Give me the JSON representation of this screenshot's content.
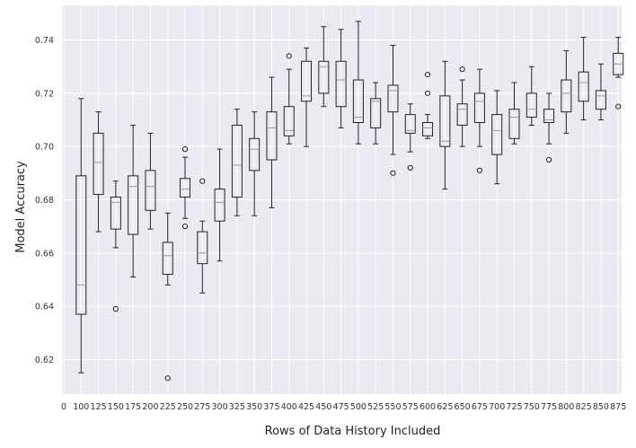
{
  "chart_data": {
    "type": "boxplot",
    "xlabel": "Rows of Data History Included",
    "ylabel": "Model Accuracy",
    "x_ticks": [
      "0",
      "100",
      "125",
      "150",
      "175",
      "200",
      "225",
      "250",
      "275",
      "300",
      "325",
      "350",
      "375",
      "400",
      "425",
      "450",
      "475",
      "500",
      "525",
      "550",
      "575",
      "600",
      "625",
      "650",
      "675",
      "700",
      "725",
      "750",
      "775",
      "800",
      "825",
      "850",
      "875"
    ],
    "y_ticks": [
      "0.62",
      "0.64",
      "0.66",
      "0.68",
      "0.70",
      "0.72",
      "0.74"
    ],
    "ylim": [
      0.607,
      0.753
    ],
    "grid": true,
    "colors": {
      "background": "#eaeaf2",
      "grid": "#ffffff",
      "box": "#222222"
    },
    "boxes": [
      {
        "x": "100",
        "whislo": 0.615,
        "q1": 0.637,
        "med": 0.648,
        "q3": 0.689,
        "whishi": 0.718,
        "fliers": []
      },
      {
        "x": "125",
        "whislo": 0.668,
        "q1": 0.682,
        "med": 0.694,
        "q3": 0.705,
        "whishi": 0.713,
        "fliers": []
      },
      {
        "x": "150",
        "whislo": 0.662,
        "q1": 0.669,
        "med": 0.679,
        "q3": 0.681,
        "whishi": 0.687,
        "fliers": [
          0.639
        ]
      },
      {
        "x": "175",
        "whislo": 0.651,
        "q1": 0.667,
        "med": 0.685,
        "q3": 0.689,
        "whishi": 0.708,
        "fliers": []
      },
      {
        "x": "200",
        "whislo": 0.669,
        "q1": 0.676,
        "med": 0.685,
        "q3": 0.691,
        "whishi": 0.705,
        "fliers": []
      },
      {
        "x": "225",
        "whislo": 0.648,
        "q1": 0.652,
        "med": 0.659,
        "q3": 0.664,
        "whishi": 0.675,
        "fliers": [
          0.613
        ]
      },
      {
        "x": "250",
        "whislo": 0.673,
        "q1": 0.681,
        "med": 0.684,
        "q3": 0.688,
        "whishi": 0.696,
        "fliers": [
          0.699,
          0.67
        ]
      },
      {
        "x": "275",
        "whislo": 0.645,
        "q1": 0.656,
        "med": 0.66,
        "q3": 0.668,
        "whishi": 0.672,
        "fliers": [
          0.687
        ]
      },
      {
        "x": "300",
        "whislo": 0.657,
        "q1": 0.672,
        "med": 0.679,
        "q3": 0.684,
        "whishi": 0.699,
        "fliers": []
      },
      {
        "x": "325",
        "whislo": 0.674,
        "q1": 0.681,
        "med": 0.693,
        "q3": 0.708,
        "whishi": 0.714,
        "fliers": []
      },
      {
        "x": "350",
        "whislo": 0.674,
        "q1": 0.691,
        "med": 0.699,
        "q3": 0.703,
        "whishi": 0.713,
        "fliers": []
      },
      {
        "x": "375",
        "whislo": 0.677,
        "q1": 0.695,
        "med": 0.707,
        "q3": 0.713,
        "whishi": 0.726,
        "fliers": []
      },
      {
        "x": "400",
        "whislo": 0.701,
        "q1": 0.704,
        "med": 0.706,
        "q3": 0.715,
        "whishi": 0.729,
        "fliers": [
          0.734
        ]
      },
      {
        "x": "425",
        "whislo": 0.7,
        "q1": 0.717,
        "med": 0.719,
        "q3": 0.732,
        "whishi": 0.737,
        "fliers": []
      },
      {
        "x": "450",
        "whislo": 0.715,
        "q1": 0.72,
        "med": 0.73,
        "q3": 0.732,
        "whishi": 0.745,
        "fliers": []
      },
      {
        "x": "475",
        "whislo": 0.707,
        "q1": 0.715,
        "med": 0.725,
        "q3": 0.732,
        "whishi": 0.744,
        "fliers": []
      },
      {
        "x": "500",
        "whislo": 0.701,
        "q1": 0.709,
        "med": 0.711,
        "q3": 0.725,
        "whishi": 0.747,
        "fliers": []
      },
      {
        "x": "525",
        "whislo": 0.701,
        "q1": 0.707,
        "med": 0.717,
        "q3": 0.718,
        "whishi": 0.724,
        "fliers": []
      },
      {
        "x": "550",
        "whislo": 0.697,
        "q1": 0.713,
        "med": 0.721,
        "q3": 0.723,
        "whishi": 0.738,
        "fliers": [
          0.69
        ]
      },
      {
        "x": "575",
        "whislo": 0.698,
        "q1": 0.705,
        "med": 0.706,
        "q3": 0.712,
        "whishi": 0.716,
        "fliers": [
          0.692
        ]
      },
      {
        "x": "600",
        "whislo": 0.703,
        "q1": 0.704,
        "med": 0.707,
        "q3": 0.709,
        "whishi": 0.712,
        "fliers": [
          0.727,
          0.72
        ]
      },
      {
        "x": "625",
        "whislo": 0.684,
        "q1": 0.7,
        "med": 0.702,
        "q3": 0.719,
        "whishi": 0.732,
        "fliers": []
      },
      {
        "x": "650",
        "whislo": 0.7,
        "q1": 0.708,
        "med": 0.714,
        "q3": 0.716,
        "whishi": 0.725,
        "fliers": [
          0.729
        ]
      },
      {
        "x": "675",
        "whislo": 0.7,
        "q1": 0.709,
        "med": 0.717,
        "q3": 0.72,
        "whishi": 0.729,
        "fliers": [
          0.691
        ]
      },
      {
        "x": "700",
        "whislo": 0.686,
        "q1": 0.697,
        "med": 0.706,
        "q3": 0.712,
        "whishi": 0.721,
        "fliers": []
      },
      {
        "x": "725",
        "whislo": 0.701,
        "q1": 0.703,
        "med": 0.711,
        "q3": 0.714,
        "whishi": 0.724,
        "fliers": []
      },
      {
        "x": "750",
        "whislo": 0.708,
        "q1": 0.711,
        "med": 0.714,
        "q3": 0.72,
        "whishi": 0.73,
        "fliers": []
      },
      {
        "x": "775",
        "whislo": 0.701,
        "q1": 0.709,
        "med": 0.71,
        "q3": 0.714,
        "whishi": 0.72,
        "fliers": [
          0.695
        ]
      },
      {
        "x": "800",
        "whislo": 0.705,
        "q1": 0.713,
        "med": 0.72,
        "q3": 0.725,
        "whishi": 0.736,
        "fliers": []
      },
      {
        "x": "825",
        "whislo": 0.71,
        "q1": 0.717,
        "med": 0.724,
        "q3": 0.728,
        "whishi": 0.741,
        "fliers": []
      },
      {
        "x": "850",
        "whislo": 0.71,
        "q1": 0.714,
        "med": 0.719,
        "q3": 0.721,
        "whishi": 0.731,
        "fliers": []
      },
      {
        "x": "875",
        "whislo": 0.726,
        "q1": 0.727,
        "med": 0.731,
        "q3": 0.735,
        "whishi": 0.741,
        "fliers": [
          0.715
        ]
      }
    ]
  }
}
